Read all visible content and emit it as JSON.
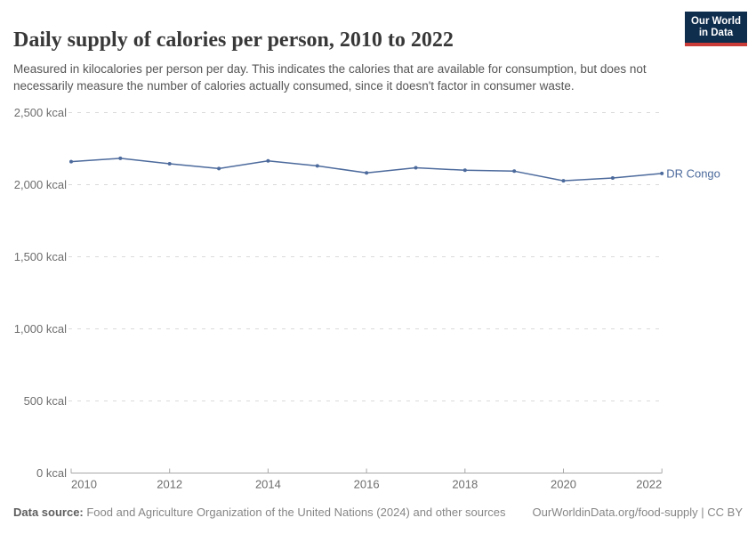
{
  "logo": {
    "line1": "Our World",
    "line2": "in Data"
  },
  "header": {
    "title": "Daily supply of calories per person, 2010 to 2022",
    "subtitle": "Measured in kilocalories per person per day. This indicates the calories that are available for consumption, but does not necessarily measure the number of calories actually consumed, since it doesn't factor in consumer waste."
  },
  "chart_data": {
    "type": "line",
    "title": "Daily supply of calories per person, 2010 to 2022",
    "x": [
      2010,
      2011,
      2012,
      2013,
      2014,
      2015,
      2016,
      2017,
      2018,
      2019,
      2020,
      2021,
      2022
    ],
    "series": [
      {
        "name": "DR Congo",
        "color": "#4c6a9c",
        "values": [
          2160,
          2183,
          2145,
          2112,
          2165,
          2130,
          2082,
          2117,
          2100,
          2094,
          2027,
          2046,
          2078
        ]
      }
    ],
    "unit": "kcal",
    "xlim": [
      2010,
      2022
    ],
    "ylim": [
      0,
      2500
    ],
    "xticks": [
      2010,
      2012,
      2014,
      2016,
      2018,
      2020,
      2022
    ],
    "yticks": [
      {
        "value": 0,
        "label": "0 kcal"
      },
      {
        "value": 500,
        "label": "500 kcal"
      },
      {
        "value": 1000,
        "label": "1,000 kcal"
      },
      {
        "value": 1500,
        "label": "1,500 kcal"
      },
      {
        "value": 2000,
        "label": "2,000 kcal"
      },
      {
        "value": 2500,
        "label": "2,500 kcal"
      }
    ],
    "grid": "horizontal-dashed",
    "legend_position": "end-of-line-label"
  },
  "footer": {
    "source_label": "Data source:",
    "source_text": " Food and Agriculture Organization of the United Nations (2024) and other sources",
    "link_text": "OurWorldinData.org/food-supply | CC BY"
  },
  "colors": {
    "accent": "#4c6a9c",
    "grid": "#dadada",
    "axis": "#a8a8a8",
    "tick-text": "#6e6e6e",
    "title-color": "#383838",
    "subtitle-color": "#555555",
    "footer-color": "#868686",
    "footer-label-color": "#5e5e5e",
    "logo-navy": "#0f2d4d",
    "logo-red": "#c93c37"
  }
}
